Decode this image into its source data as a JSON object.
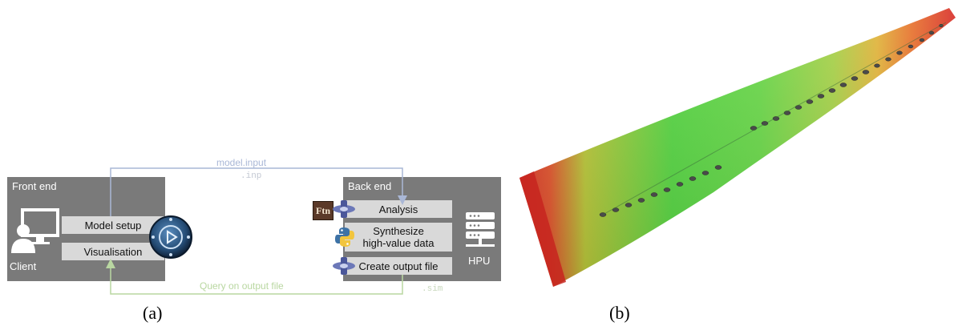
{
  "diagram": {
    "front_end": {
      "title": "Front end",
      "client_label": "Client",
      "buttons": [
        "Model setup",
        "Visualisation"
      ]
    },
    "back_end": {
      "title": "Back end",
      "steps": [
        "Analysis",
        "Synthesize\nhigh-value data",
        "Create output file"
      ],
      "hpu_label": "HPU",
      "fortran_badge": "Ftn"
    },
    "arrows": {
      "top_label": "model.input",
      "top_ext": ".inp",
      "bottom_label": "Query on output file",
      "bottom_ext": ".sim"
    },
    "colors": {
      "panel": "#7a7a7a",
      "box": "#d9d9d9",
      "top_arrow": "#a9b7d6",
      "bottom_arrow": "#b9d7a1"
    }
  },
  "captions": {
    "a": "(a)",
    "b": "(b)"
  },
  "image_b": {
    "subject": "wing-contour-plot"
  }
}
